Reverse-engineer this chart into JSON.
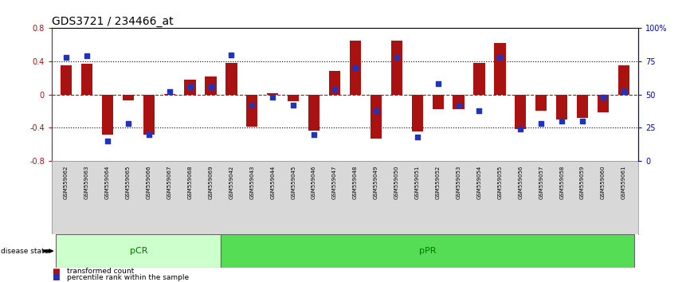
{
  "title": "GDS3721 / 234466_at",
  "samples": [
    "GSM559062",
    "GSM559063",
    "GSM559064",
    "GSM559065",
    "GSM559066",
    "GSM559067",
    "GSM559068",
    "GSM559069",
    "GSM559042",
    "GSM559043",
    "GSM559044",
    "GSM559045",
    "GSM559046",
    "GSM559047",
    "GSM559048",
    "GSM559049",
    "GSM559050",
    "GSM559051",
    "GSM559052",
    "GSM559053",
    "GSM559054",
    "GSM559055",
    "GSM559056",
    "GSM559057",
    "GSM559058",
    "GSM559059",
    "GSM559060",
    "GSM559061"
  ],
  "transformed_count": [
    0.35,
    0.37,
    -0.48,
    -0.07,
    -0.48,
    0.01,
    0.18,
    0.22,
    0.38,
    -0.39,
    0.02,
    -0.08,
    -0.44,
    0.28,
    0.65,
    -0.53,
    0.65,
    -0.45,
    -0.18,
    -0.18,
    0.38,
    0.62,
    -0.42,
    -0.2,
    -0.3,
    -0.28,
    -0.22,
    0.35
  ],
  "percentile_rank": [
    78,
    79,
    15,
    28,
    20,
    52,
    56,
    56,
    80,
    42,
    48,
    42,
    20,
    54,
    70,
    38,
    78,
    18,
    58,
    42,
    38,
    78,
    24,
    28,
    30,
    30,
    48,
    52
  ],
  "pCR_count": 8,
  "pPR_count": 20,
  "ylim_left": [
    -0.8,
    0.8
  ],
  "ylim_right": [
    0,
    100
  ],
  "bar_color": "#AA1111",
  "dot_color": "#2233BB",
  "pCR_color": "#ccffcc",
  "pPR_color": "#55dd55",
  "group_text_color": "#007700",
  "zero_line_color": "#cc0000",
  "right_axis_color": "#0000cc",
  "label_bg_color": "#d8d8d8",
  "title_fontsize": 10,
  "tick_fontsize": 7,
  "bar_width": 0.55
}
